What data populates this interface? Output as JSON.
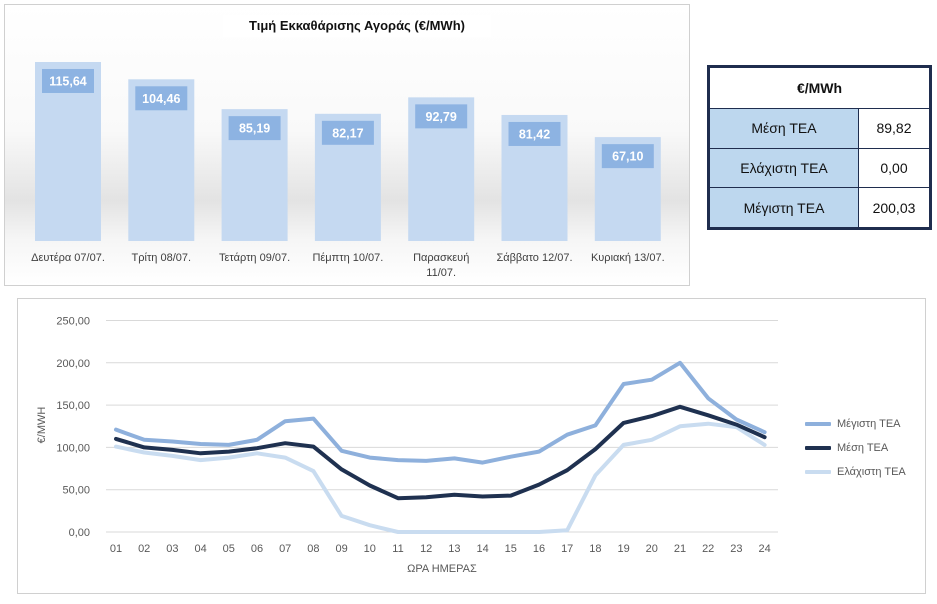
{
  "bar_chart": {
    "title": "Τιμή Εκκαθάρισης Αγοράς (€/MWh)"
  },
  "stats_table": {
    "header": "€/MWh",
    "rows": [
      {
        "label": "Μέση ΤΕΑ",
        "value": "89,82"
      },
      {
        "label": "Ελάχιστη ΤΕΑ",
        "value": "0,00"
      },
      {
        "label": "Μέγιστη ΤΕΑ",
        "value": "200,03"
      }
    ]
  },
  "colors": {
    "bar_fill": "#c5d9f1",
    "bar_label_bg": "#8db3e2",
    "max_line": "#8eb0dc",
    "avg_line": "#1f3150",
    "min_line": "#c9dcf0",
    "grid": "#d9d9d9"
  },
  "chart_data": [
    {
      "type": "bar",
      "title": "Τιμή Εκκαθάρισης Αγοράς (€/MWh)",
      "categories": [
        "Δευτέρα 07/07.",
        "Τρίτη 08/07.",
        "Τετάρτη 09/07.",
        "Πέμπτη 10/07.",
        "Παρασκευή 11/07.",
        "Σάββατο 12/07.",
        "Κυριακή 13/07."
      ],
      "values": [
        115.64,
        104.46,
        85.19,
        82.17,
        92.79,
        81.42,
        67.1
      ],
      "data_labels": [
        "115,64",
        "104,46",
        "85,19",
        "82,17",
        "92,79",
        "81,42",
        "67,10"
      ],
      "xlabel": "",
      "ylabel": "",
      "grid": false
    },
    {
      "type": "line",
      "title": "",
      "xlabel": "ΩΡΑ ΗΜΕΡΑΣ",
      "ylabel": "€/MWH",
      "x": [
        "01",
        "02",
        "03",
        "04",
        "05",
        "06",
        "07",
        "08",
        "09",
        "10",
        "11",
        "12",
        "13",
        "14",
        "15",
        "16",
        "17",
        "18",
        "19",
        "20",
        "21",
        "22",
        "23",
        "24"
      ],
      "ylim": [
        0,
        250
      ],
      "yticks": [
        "0,00",
        "50,00",
        "100,00",
        "150,00",
        "200,00",
        "250,00"
      ],
      "grid": true,
      "legend": "right",
      "series": [
        {
          "name": "Μέγιστη ΤΕΑ",
          "values": [
            121,
            109,
            107,
            104,
            103,
            109,
            131,
            134,
            96,
            88,
            85,
            84,
            87,
            82,
            89,
            95,
            115,
            126,
            175,
            180,
            200,
            158,
            133,
            118
          ]
        },
        {
          "name": "Μέση ΤΕΑ",
          "values": [
            110,
            100,
            97,
            93,
            95,
            99,
            105,
            101,
            74,
            55,
            40,
            41,
            44,
            42,
            43,
            56,
            73,
            98,
            129,
            137,
            148,
            138,
            127,
            112
          ]
        },
        {
          "name": "Ελάχιστη ΤΕΑ",
          "values": [
            101,
            94,
            90,
            85,
            88,
            93,
            88,
            72,
            19,
            8,
            0,
            0,
            0,
            0,
            0,
            0,
            2,
            67,
            103,
            109,
            125,
            128,
            124,
            103
          ]
        }
      ]
    }
  ]
}
